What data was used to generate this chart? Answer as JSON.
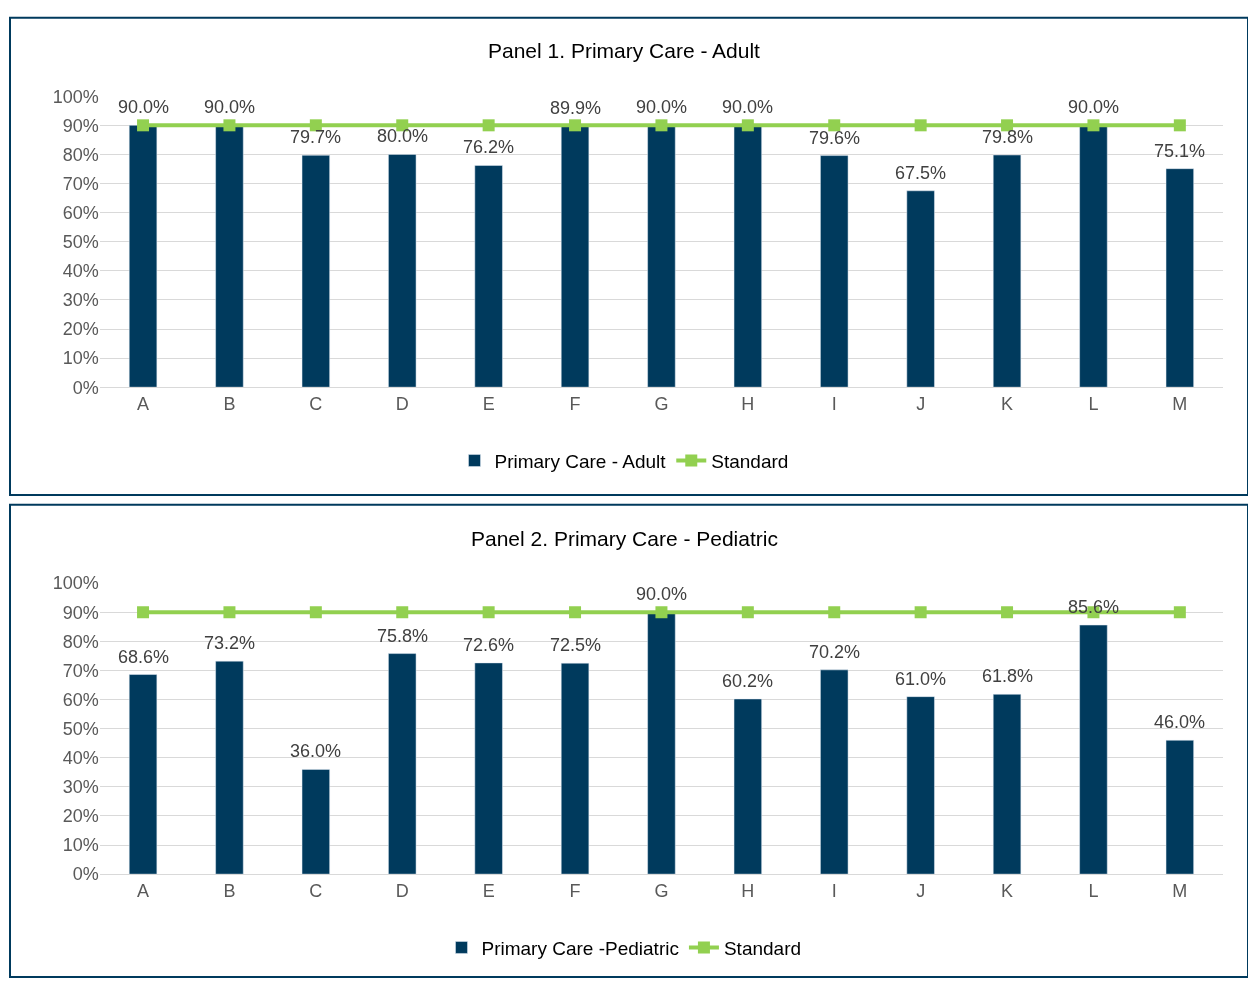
{
  "chart_data": [
    {
      "type": "bar",
      "title": "Panel 1. Primary Care - Adult",
      "categories": [
        "A",
        "B",
        "C",
        "D",
        "E",
        "F",
        "G",
        "H",
        "I",
        "J",
        "K",
        "L",
        "M"
      ],
      "series": [
        {
          "name": "Primary Care - Adult",
          "color": "#003a5d",
          "values": [
            90.0,
            90.0,
            79.7,
            80.0,
            76.2,
            89.9,
            90.0,
            90.0,
            79.6,
            67.5,
            79.8,
            90.0,
            75.1
          ],
          "value_labels": [
            "90.0%",
            "90.0%",
            "79.7%",
            "80.0%",
            "76.2%",
            "89.9%",
            "90.0%",
            "90.0%",
            "79.6%",
            "67.5%",
            "79.8%",
            "90.0%",
            "75.1%"
          ]
        },
        {
          "name": "Standard",
          "type": "line",
          "color": "#92d050",
          "marker": "square",
          "values": [
            90,
            90,
            90,
            90,
            90,
            90,
            90,
            90,
            90,
            90,
            90,
            90,
            90
          ]
        }
      ],
      "ylim": [
        0,
        100
      ],
      "yticks": [
        {
          "value": 0,
          "label": "0%"
        },
        {
          "value": 10,
          "label": "10%"
        },
        {
          "value": 20,
          "label": "20%"
        },
        {
          "value": 30,
          "label": "30%"
        },
        {
          "value": 40,
          "label": "40%"
        },
        {
          "value": 50,
          "label": "50%"
        },
        {
          "value": 60,
          "label": "60%"
        },
        {
          "value": 70,
          "label": "70%"
        },
        {
          "value": 80,
          "label": "80%"
        },
        {
          "value": 90,
          "label": "90%"
        },
        {
          "value": 100,
          "label": "100%"
        }
      ],
      "grid": "y",
      "legend": "bottom"
    },
    {
      "type": "bar",
      "title": "Panel 2. Primary Care - Pediatric",
      "categories": [
        "A",
        "B",
        "C",
        "D",
        "E",
        "F",
        "G",
        "H",
        "I",
        "J",
        "K",
        "L",
        "M"
      ],
      "series": [
        {
          "name": "Primary Care -Pediatric",
          "color": "#003a5d",
          "values": [
            68.6,
            73.2,
            36.0,
            75.8,
            72.6,
            72.5,
            90.0,
            60.2,
            70.2,
            61.0,
            61.8,
            85.6,
            46.0
          ],
          "value_labels": [
            "68.6%",
            "73.2%",
            "36.0%",
            "75.8%",
            "72.6%",
            "72.5%",
            "90.0%",
            "60.2%",
            "70.2%",
            "61.0%",
            "61.8%",
            "85.6%",
            "46.0%"
          ]
        },
        {
          "name": "Standard",
          "type": "line",
          "color": "#92d050",
          "marker": "square",
          "values": [
            90,
            90,
            90,
            90,
            90,
            90,
            90,
            90,
            90,
            90,
            90,
            90,
            90
          ]
        }
      ],
      "ylim": [
        0,
        100
      ],
      "yticks": [
        {
          "value": 0,
          "label": "0%"
        },
        {
          "value": 10,
          "label": "10%"
        },
        {
          "value": 20,
          "label": "20%"
        },
        {
          "value": 30,
          "label": "30%"
        },
        {
          "value": 40,
          "label": "40%"
        },
        {
          "value": 50,
          "label": "50%"
        },
        {
          "value": 60,
          "label": "60%"
        },
        {
          "value": 70,
          "label": "70%"
        },
        {
          "value": 80,
          "label": "80%"
        },
        {
          "value": 90,
          "label": "90%"
        },
        {
          "value": 100,
          "label": "100%"
        }
      ],
      "grid": "y",
      "legend": "bottom"
    }
  ]
}
